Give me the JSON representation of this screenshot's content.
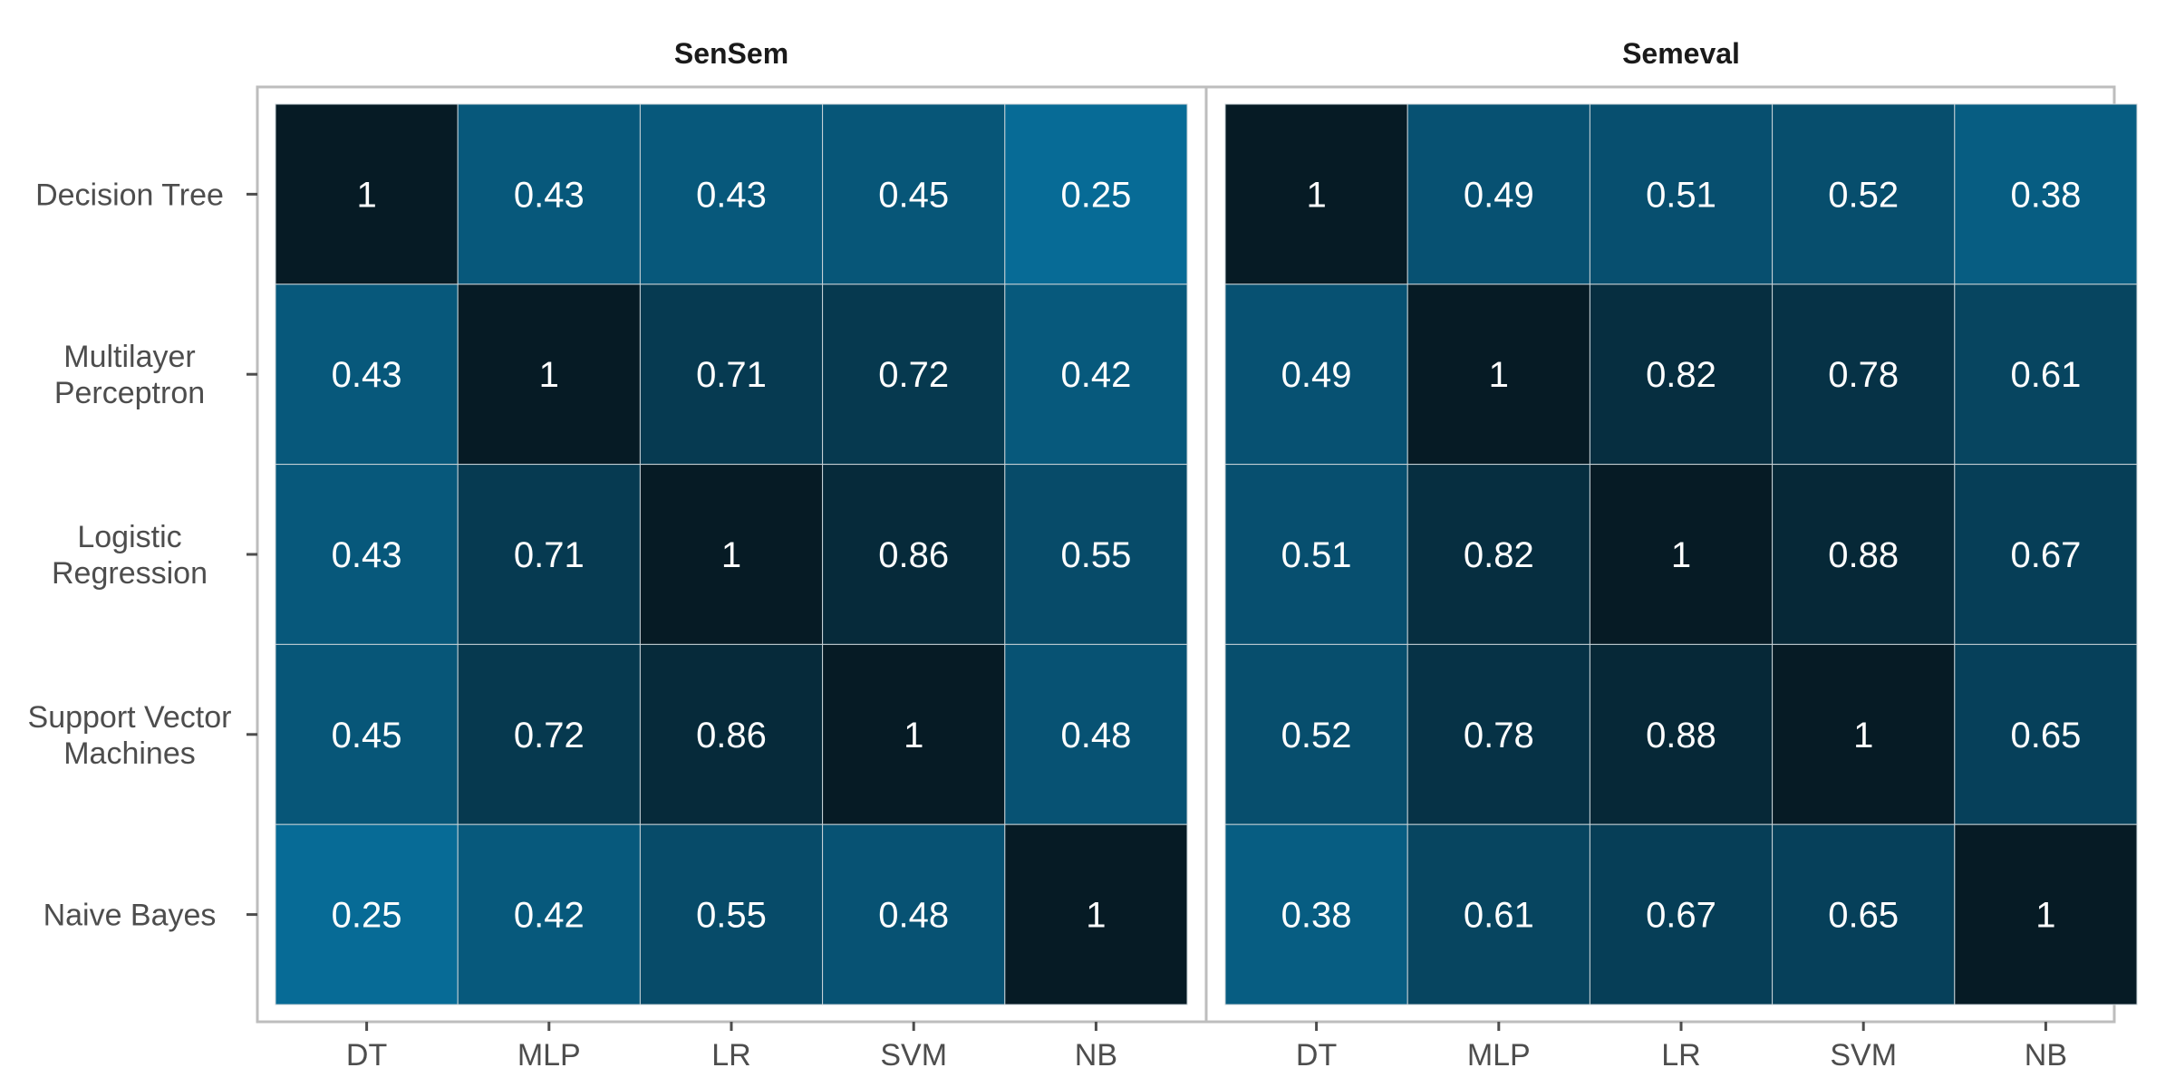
{
  "chart_data": {
    "type": "heatmap",
    "x_categories": [
      "DT",
      "MLP",
      "LR",
      "SVM",
      "NB"
    ],
    "y_categories": [
      [
        "Decision Tree"
      ],
      [
        "Multilayer",
        "Perceptron"
      ],
      [
        "Logistic",
        "Regression"
      ],
      [
        "Support Vector",
        "Machines"
      ],
      [
        "Naive Bayes"
      ]
    ],
    "facets": [
      {
        "title": "SenSem",
        "matrix": [
          [
            1,
            0.43,
            0.43,
            0.45,
            0.25
          ],
          [
            0.43,
            1,
            0.71,
            0.72,
            0.42
          ],
          [
            0.43,
            0.71,
            1,
            0.86,
            0.55
          ],
          [
            0.45,
            0.72,
            0.86,
            1,
            0.48
          ],
          [
            0.25,
            0.42,
            0.55,
            0.48,
            1
          ]
        ]
      },
      {
        "title": "Semeval",
        "matrix": [
          [
            1,
            0.49,
            0.51,
            0.52,
            0.38
          ],
          [
            0.49,
            1,
            0.82,
            0.78,
            0.61
          ],
          [
            0.51,
            0.82,
            1,
            0.88,
            0.67
          ],
          [
            0.52,
            0.78,
            0.88,
            1,
            0.65
          ],
          [
            0.38,
            0.61,
            0.67,
            0.65,
            1
          ]
        ]
      }
    ],
    "color_scale": {
      "low_value": 0.25,
      "high_value": 1,
      "low_color": "#076b96",
      "high_color": "#061b25"
    },
    "cell_text_color": "#ffffff",
    "legend": "none"
  }
}
